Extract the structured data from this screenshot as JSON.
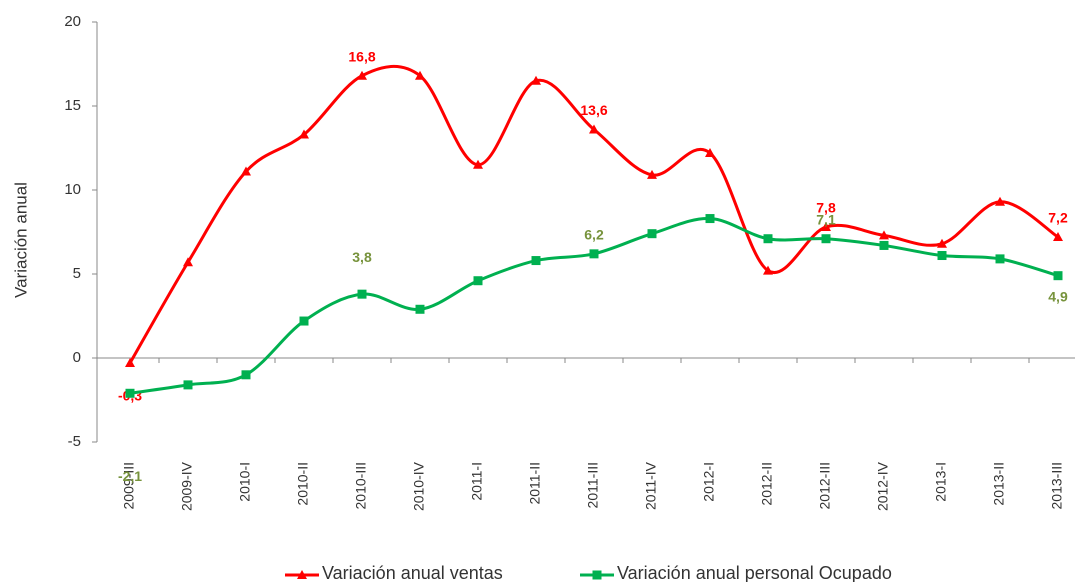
{
  "chart_data": {
    "type": "line",
    "y_label": "Variación anual",
    "categories": [
      "2009-III",
      "2009-IV",
      "2010-I",
      "2010-II",
      "2010-III",
      "2010-IV",
      "2011-I",
      "2011-II",
      "2011-III",
      "2011-IV",
      "2012-I",
      "2012-II",
      "2012-III",
      "2012-IV",
      "2013-I",
      "2013-II",
      "2013-III"
    ],
    "series": [
      {
        "name": "Variación anual ventas",
        "color": "#ff0000",
        "marker": "triangle",
        "values": [
          -0.3,
          5.7,
          11.1,
          13.3,
          16.8,
          16.8,
          11.5,
          16.5,
          13.6,
          10.9,
          12.2,
          5.2,
          7.8,
          7.3,
          6.8,
          9.3,
          7.2
        ],
        "value_labels": [
          "-0,3",
          null,
          null,
          null,
          "16,8",
          null,
          null,
          null,
          "13,6",
          null,
          null,
          null,
          "7,8",
          null,
          null,
          null,
          "7,2"
        ]
      },
      {
        "name": "Variación anual personal Ocupado",
        "color": "#00b050",
        "label_color": "#77933c",
        "marker": "square",
        "values": [
          -2.1,
          -1.6,
          -1.0,
          2.2,
          3.8,
          2.9,
          4.6,
          5.8,
          6.2,
          7.4,
          8.3,
          7.1,
          7.1,
          6.7,
          6.1,
          5.9,
          4.9
        ],
        "value_labels": [
          "-2,1",
          null,
          null,
          null,
          "3,8",
          null,
          null,
          null,
          "6,2",
          null,
          null,
          null,
          "7,1",
          null,
          null,
          null,
          "4,9"
        ]
      }
    ],
    "ylim": [
      -5,
      20
    ],
    "yticks": [
      -5,
      0,
      5,
      10,
      15,
      20
    ],
    "grid": false,
    "legend": "bottom"
  }
}
